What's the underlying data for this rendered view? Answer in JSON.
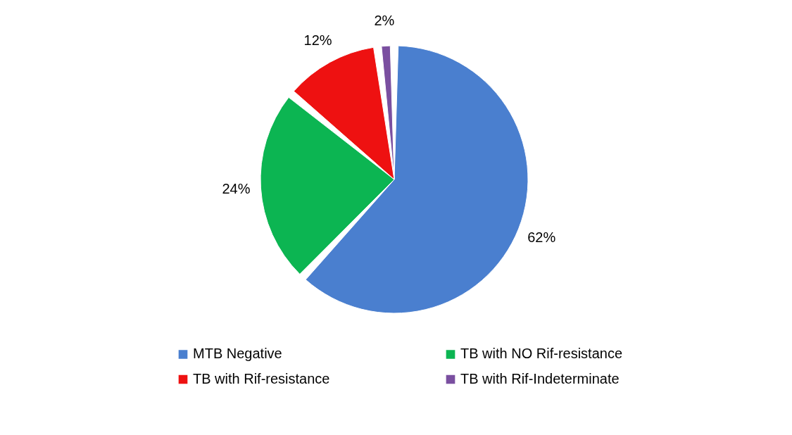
{
  "chart_data": {
    "type": "pie",
    "categories": [
      "MTB Negative",
      "TB with NO Rif-resistance",
      "TB with Rif-resistance",
      "TB with Rif-Indeterminate"
    ],
    "values": [
      62,
      24,
      12,
      2
    ],
    "colors": [
      "#4a7fcf",
      "#0cb552",
      "#ee1111",
      "#7a4fa0"
    ],
    "value_labels": [
      "62%",
      "24%",
      "12%",
      "2%"
    ],
    "legend": "bottom"
  }
}
